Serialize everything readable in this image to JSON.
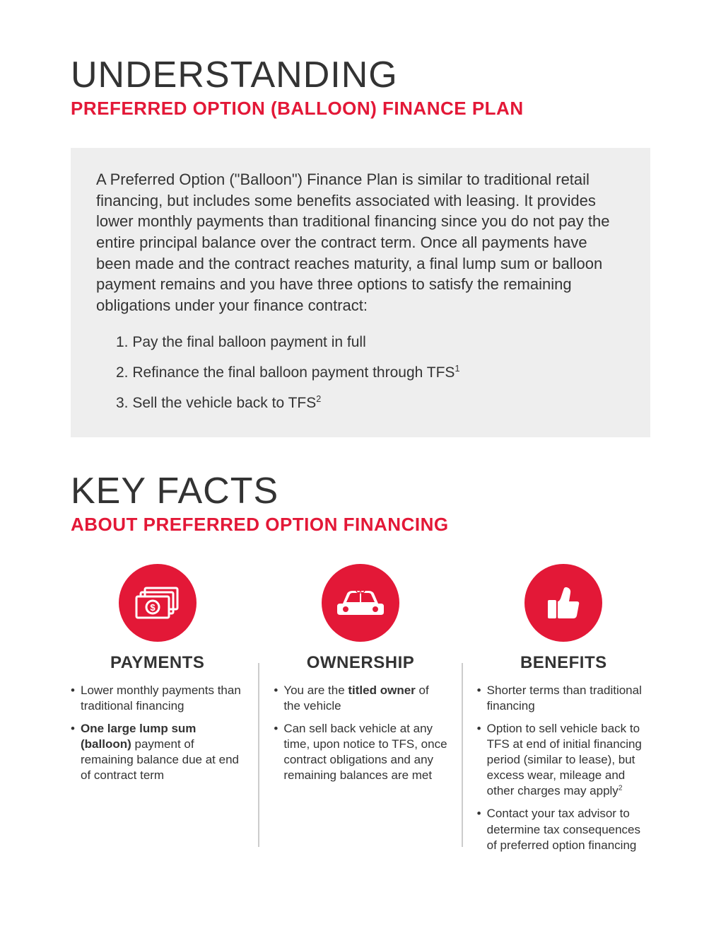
{
  "colors": {
    "accent": "#e31837",
    "text": "#333333",
    "intro_bg": "#eeeeee",
    "divider": "#cccccc",
    "icon_fg": "#ffffff"
  },
  "header": {
    "title": "UNDERSTANDING",
    "subtitle": "PREFERRED OPTION (BALLOON) FINANCE PLAN"
  },
  "intro": {
    "paragraph": "A Preferred Option (\"Balloon\") Finance Plan is similar to traditional retail financing, but includes some benefits associated with leasing. It provides lower monthly payments than traditional financing since you do not pay the entire principal balance over the contract term. Once all payments have been made and the contract reaches maturity, a final lump sum or balloon payment remains and you have three options to satisfy the remaining obligations under your finance contract:",
    "options": [
      {
        "num": "1.",
        "text": "Pay the final balloon payment in full",
        "sup": ""
      },
      {
        "num": "2.",
        "text": "Refinance the final balloon payment through TFS",
        "sup": "1"
      },
      {
        "num": "3.",
        "text": "Sell the vehicle back to TFS",
        "sup": "2"
      }
    ]
  },
  "keyfacts": {
    "title": "KEY FACTS",
    "subtitle": "ABOUT PREFERRED OPTION FINANCING",
    "columns": [
      {
        "icon": "money",
        "title": "PAYMENTS",
        "bullets": [
          {
            "html": "Lower monthly payments than traditional financing"
          },
          {
            "html": "<span class='b'>One large lump sum (balloon)</span> payment of remaining balance due at end of contract term"
          }
        ]
      },
      {
        "icon": "car",
        "title": "OWNERSHIP",
        "bullets": [
          {
            "html": "You are the <span class='b'>titled owner</span> of the vehicle"
          },
          {
            "html": "Can sell back vehicle at any time, upon notice to TFS, once contract obligations and any remaining balances are met"
          }
        ]
      },
      {
        "icon": "thumbs-up",
        "title": "BENEFITS",
        "bullets": [
          {
            "html": "Shorter terms than traditional financing"
          },
          {
            "html": "Option to sell vehicle back to TFS at end of initial financing period (similar to lease), but excess wear, mileage and other charges may apply<span class='sup'>2</span>"
          },
          {
            "html": "Contact your tax advisor to determine tax consequences of preferred option financing"
          }
        ]
      }
    ]
  }
}
